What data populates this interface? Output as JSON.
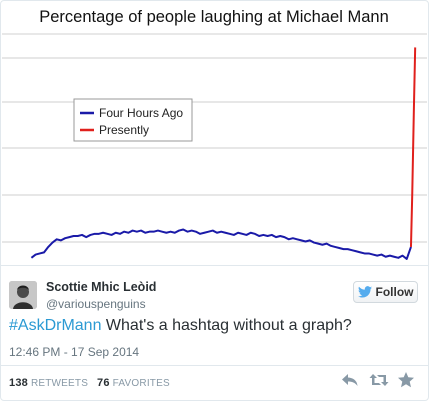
{
  "chart_data": {
    "type": "line",
    "title": "Percentage of people laughing at Michael Mann",
    "xlabel": "",
    "ylabel": "",
    "x": [
      0,
      1,
      2,
      3,
      4,
      5,
      6,
      7,
      8,
      9,
      10,
      11,
      12,
      13,
      14,
      15,
      16,
      17,
      18,
      19,
      20,
      21,
      22,
      23,
      24,
      25,
      26,
      27,
      28,
      29,
      30,
      31,
      32,
      33,
      34,
      35,
      36,
      37,
      38,
      39,
      40,
      41,
      42,
      43,
      44,
      45,
      46,
      47,
      48,
      49,
      50,
      51,
      52,
      53,
      54,
      55,
      56,
      57,
      58,
      59,
      60,
      61,
      62,
      63,
      64,
      65,
      66,
      67,
      68,
      69,
      70,
      71,
      72,
      73,
      74,
      75,
      76,
      77,
      78,
      79,
      80,
      81,
      82,
      83,
      84,
      85,
      86,
      87,
      88,
      89,
      90
    ],
    "series": [
      {
        "name": "Four Hours Ago",
        "color": "#1a1aa8",
        "values": [
          2,
          5,
          6,
          7,
          12,
          16,
          19,
          18,
          20,
          21,
          22,
          22,
          23,
          21,
          23,
          24,
          24,
          25,
          24,
          23,
          25,
          24,
          26,
          25,
          27,
          26,
          27,
          25,
          26,
          26,
          27,
          26,
          25,
          26,
          25,
          27,
          28,
          26,
          27,
          26,
          24,
          25,
          26,
          27,
          25,
          26,
          25,
          24,
          23,
          25,
          24,
          23,
          25,
          24,
          22,
          23,
          22,
          23,
          21,
          22,
          21,
          19,
          20,
          19,
          18,
          17,
          18,
          16,
          15,
          14,
          15,
          13,
          12,
          11,
          10,
          10,
          9,
          8,
          7,
          6,
          6,
          5,
          4,
          5,
          3,
          4,
          3,
          2,
          4,
          1,
          12
        ]
      },
      {
        "name": "Presently",
        "color": "#e0201c",
        "x": [
          90,
          90.3,
          90.7,
          91
        ],
        "values": [
          12,
          60,
          140,
          195
        ]
      }
    ],
    "xlim": [
      0,
      92
    ],
    "ylim": [
      0,
      200
    ],
    "grid": "horizontal",
    "legend": "center-left"
  },
  "tweet": {
    "author_name": "Scottie Mhic Leòid",
    "author_handle": "@variouspenguins",
    "follow_label": "Follow",
    "hashtag": "#AskDrMann",
    "text": " What's a hashtag without a graph?",
    "timestamp": "12:46 PM - 17 Sep 2014",
    "retweets_count": "138",
    "retweets_label": "RETWEETS",
    "favorites_count": "76",
    "favorites_label": "FAVORITES"
  },
  "icons": {
    "follow": "bird-icon",
    "reply": "reply-icon",
    "retweet": "retweet-icon",
    "favorite": "star-icon",
    "avatar": "avatar-portrait",
    "accent_color": "#2b9ad3"
  }
}
